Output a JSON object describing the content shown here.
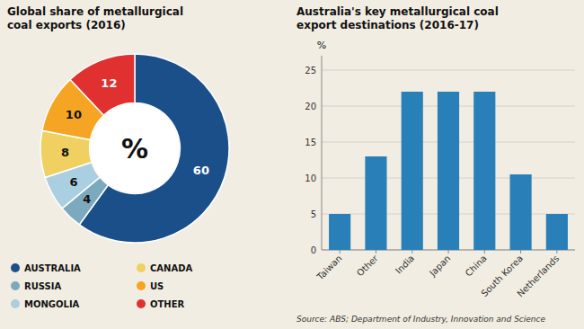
{
  "chart_data": [
    {
      "type": "pie",
      "title": "Global share of metallurgical\ncoal exports (2016)",
      "categories": [
        "AUSTRALIA",
        "RUSSIA",
        "MONGOLIA",
        "CANADA",
        "US",
        "OTHER"
      ],
      "values": [
        60,
        4,
        6,
        8,
        10,
        12
      ],
      "colors": [
        "#1b4f8a",
        "#7baabe",
        "#aacfe0",
        "#f0d060",
        "#f5a523",
        "#e03030"
      ],
      "data_labels": true,
      "legend": "bottom",
      "annotations": [
        "%"
      ]
    },
    {
      "type": "bar",
      "title": "Australia's key metallurgical coal\nexport destinations (2016-17)",
      "categories": [
        "Taiwan",
        "Other",
        "India",
        "Japan",
        "China",
        "South Korea",
        "Netherlands"
      ],
      "values": [
        5,
        13,
        22,
        22,
        22,
        10.5,
        5
      ],
      "color": "#2980b9",
      "ylabel": "%",
      "ylim": [
        0,
        27
      ],
      "yticks": [
        0,
        5,
        10,
        15,
        20,
        25
      ],
      "grid": true,
      "annotations": [
        "Source: ABS; Department of Industry, Innovation and Science"
      ]
    }
  ]
}
